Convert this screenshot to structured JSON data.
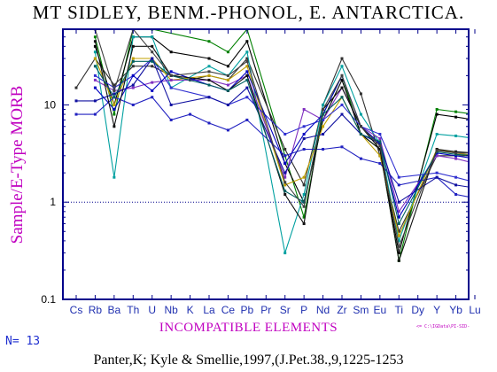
{
  "chart_data": {
    "type": "line",
    "title": "MT SIDLEY, BENM.-PHONOL, E. ANTARCTICA.",
    "xlabel": "INCOMPATIBLE ELEMENTS",
    "ylabel": "Sample/E-Type MORB",
    "y_scale": "log",
    "ylim": [
      0.1,
      60
    ],
    "y_ticks": [
      {
        "value": 0.1,
        "label": "0.1"
      },
      {
        "value": 1,
        "label": "1"
      },
      {
        "value": 10,
        "label": "10"
      }
    ],
    "reference_line": 1,
    "categories": [
      "Cs",
      "Rb",
      "Ba",
      "Th",
      "U",
      "Nb",
      "K",
      "La",
      "Ce",
      "Pb",
      "Pr",
      "Sr",
      "P",
      "Nd",
      "Zr",
      "Sm",
      "Eu",
      "Ti",
      "Dy",
      "Y",
      "Yb",
      "Lu"
    ],
    "series": [
      {
        "color": "#008000",
        "values": [
          null,
          50,
          8,
          60,
          60,
          null,
          null,
          45,
          35,
          70,
          null,
          3.0,
          0.7,
          8,
          20,
          5,
          3.5,
          0.25,
          null,
          9.0,
          8.5,
          8.0
        ]
      },
      {
        "color": "#000000",
        "values": [
          null,
          40,
          10,
          50,
          50,
          35,
          null,
          30,
          25,
          45,
          null,
          2.5,
          1.0,
          7,
          18,
          5,
          3.5,
          0.3,
          null,
          8.0,
          7.5,
          7.0
        ]
      },
      {
        "color": "#303030",
        "values": [
          15,
          30,
          16,
          25,
          25,
          20,
          18,
          20,
          18,
          30,
          null,
          3.5,
          1.5,
          10,
          30,
          13,
          3.0,
          0.5,
          null,
          3.0,
          3.0,
          3.0
        ]
      },
      {
        "color": "#00a0a0",
        "values": [
          null,
          35,
          1.8,
          50,
          50,
          15,
          null,
          25,
          20,
          35,
          null,
          0.3,
          1.2,
          10,
          25,
          8,
          4.0,
          0.4,
          null,
          5.0,
          4.8,
          4.5
        ]
      },
      {
        "color": "#c0a000",
        "values": [
          null,
          30,
          10,
          30,
          30,
          18,
          null,
          20,
          18,
          25,
          null,
          1.5,
          1.8,
          6,
          12,
          5,
          3.0,
          0.45,
          null,
          3.5,
          3.2,
          3.0
        ]
      },
      {
        "color": "#8030c0",
        "values": [
          null,
          18,
          14,
          15,
          17,
          18,
          null,
          18,
          16,
          20,
          null,
          1.8,
          9.0,
          7,
          15,
          6,
          4.5,
          0.8,
          null,
          3.0,
          2.8,
          2.5
        ]
      },
      {
        "color": "#2020c0",
        "values": [
          8,
          8,
          12,
          10,
          12,
          7,
          8,
          6.5,
          5.5,
          7,
          null,
          3.0,
          3.5,
          3.5,
          3.7,
          2.8,
          2.5,
          1.5,
          null,
          1.8,
          1.2,
          1.1
        ]
      },
      {
        "color": "#3030d0",
        "values": [
          null,
          20,
          15,
          20,
          30,
          15,
          null,
          12,
          10,
          12,
          null,
          5.0,
          6.0,
          7,
          10,
          6,
          5.0,
          1.8,
          null,
          2.0,
          1.8,
          1.6
        ]
      },
      {
        "color": "#1010a0",
        "values": [
          11,
          11,
          13,
          16,
          30,
          10,
          null,
          12,
          10,
          15,
          null,
          2.0,
          4.5,
          5,
          8,
          5,
          4.0,
          1.0,
          null,
          1.8,
          1.5,
          1.4
        ]
      },
      {
        "color": "#0000c0",
        "values": [
          null,
          15,
          9,
          20,
          14,
          22,
          null,
          16,
          14,
          22,
          null,
          2.5,
          5.0,
          8,
          20,
          6,
          4.0,
          0.7,
          null,
          3.2,
          3.0,
          2.8
        ]
      },
      {
        "color": "#101010",
        "values": [
          null,
          45,
          6,
          40,
          40,
          20,
          null,
          18,
          14,
          20,
          null,
          1.2,
          0.6,
          9,
          15,
          6,
          3.5,
          0.25,
          null,
          3.5,
          3.3,
          3.2
        ]
      },
      {
        "color": "#006060",
        "values": [
          null,
          25,
          12,
          28,
          28,
          20,
          null,
          16,
          14,
          18,
          null,
          1.3,
          1.0,
          8,
          12,
          5,
          4.2,
          0.6,
          null,
          3.3,
          3.1,
          3.0
        ]
      },
      {
        "color": "#404040",
        "values": [
          null,
          60,
          14,
          70,
          35,
          20,
          null,
          22,
          20,
          28,
          null,
          1.6,
          0.9,
          9,
          20,
          6,
          3.8,
          0.35,
          null,
          3.4,
          3.2,
          3.2
        ]
      }
    ]
  },
  "title": "MT SIDLEY, BENM.-PHONOL, E. ANTARCTICA.",
  "ylabel": "Sample/E-Type MORB",
  "xlabel": "INCOMPATIBLE ELEMENTS",
  "n_label": "N= 13",
  "file_tag": "<= C:\\IGData\\PI-SID-",
  "citation": "Panter,K; Kyle & Smellie,1997,(J.Pet.38.,9,1225-1253",
  "colors": {
    "frame": "#00008b",
    "axis_label": "#c000c0",
    "tick_x": "#2030b0",
    "reference": "#00008b"
  }
}
